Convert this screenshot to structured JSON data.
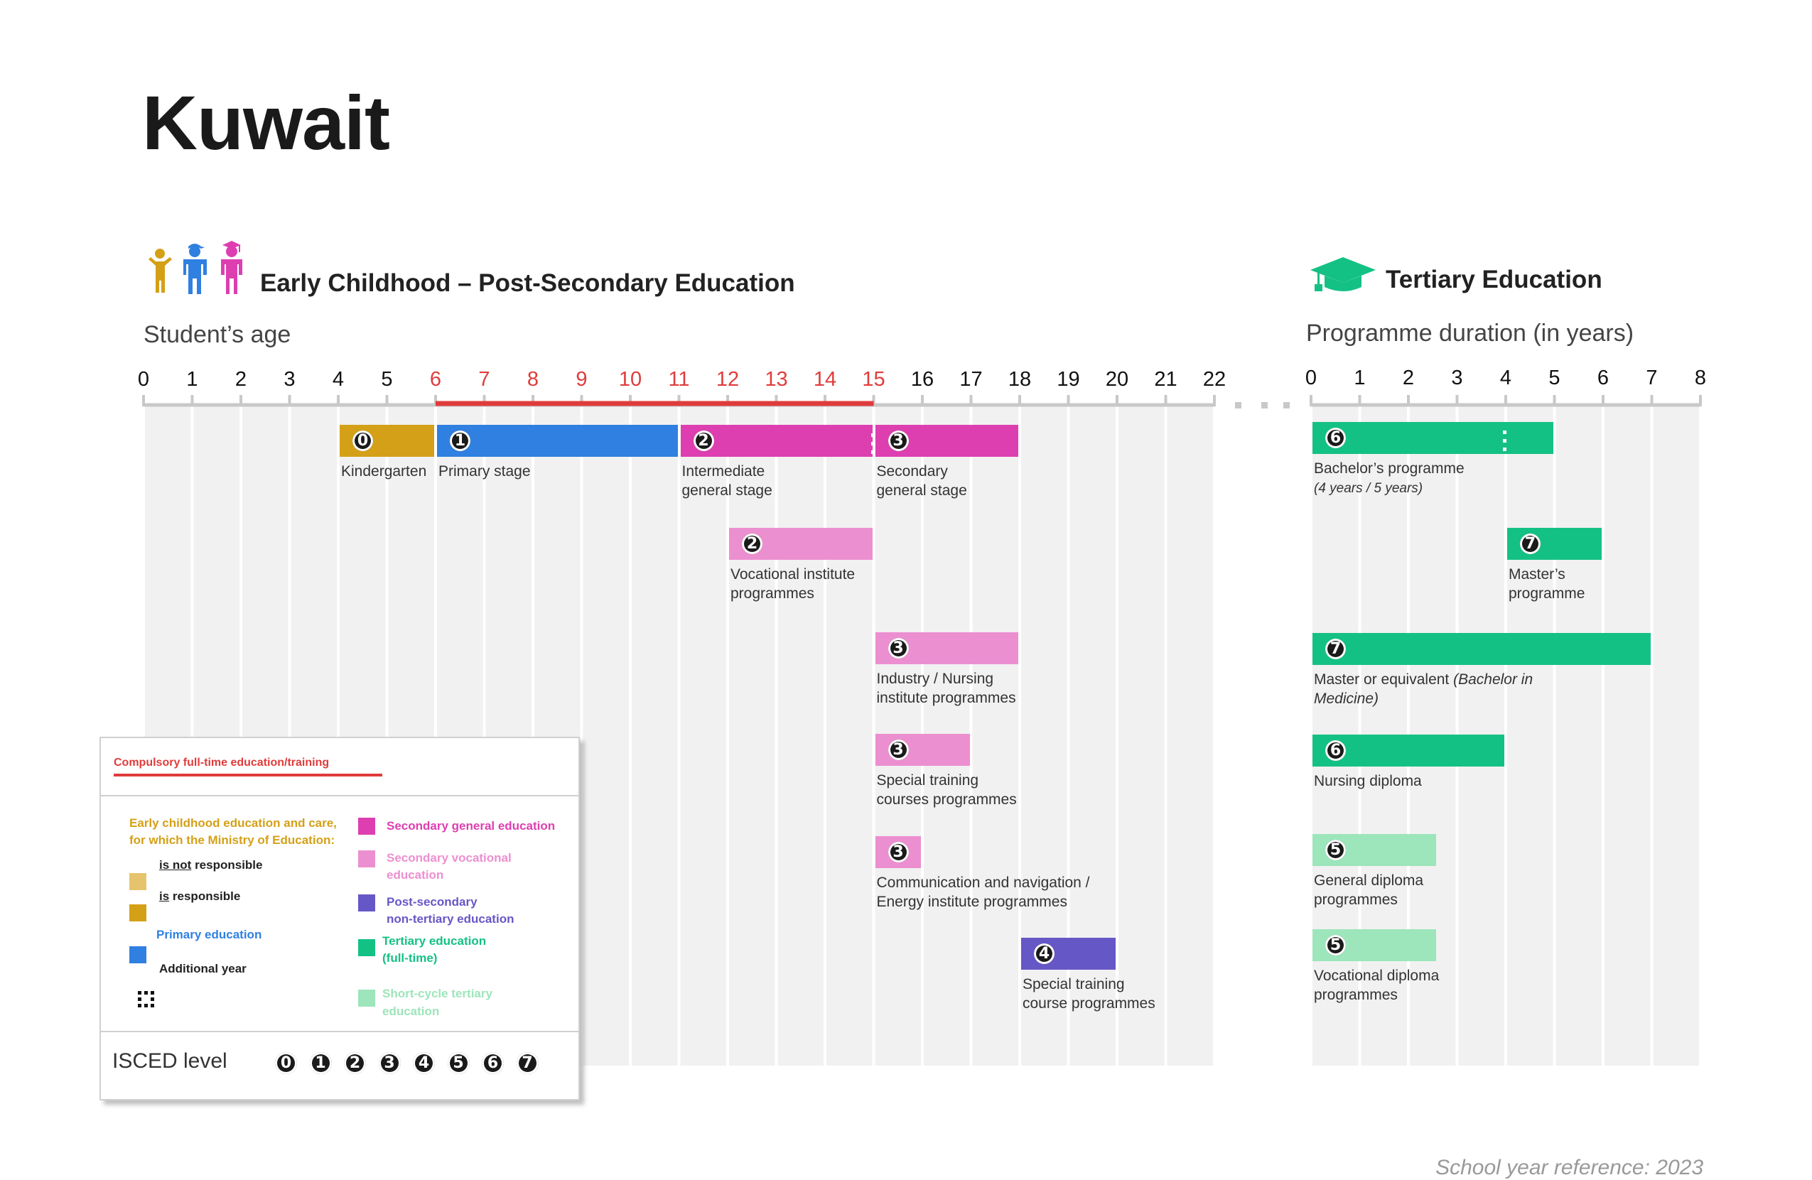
{
  "title": "Kuwait",
  "left_section": {
    "title": "Early Childhood – Post-Secondary Education",
    "axis_title": "Student’s age",
    "ticks": [
      "0",
      "1",
      "2",
      "3",
      "4",
      "5",
      "6",
      "7",
      "8",
      "9",
      "10",
      "11",
      "12",
      "13",
      "14",
      "15",
      "16",
      "17",
      "18",
      "19",
      "20",
      "21",
      "22"
    ],
    "compulsory_range": [
      "6",
      "15"
    ]
  },
  "right_section": {
    "title": "Tertiary Education",
    "axis_title": "Programme duration (in years)",
    "ticks": [
      "0",
      "1",
      "2",
      "3",
      "4",
      "5",
      "6",
      "7",
      "8"
    ]
  },
  "programmes": [
    {
      "label": "Kindergarten",
      "level": "0",
      "category": "early-childhood-responsible",
      "start": 4,
      "end": 6,
      "axis": "age"
    },
    {
      "label": "Primary stage",
      "level": "1",
      "category": "primary",
      "start": 6,
      "end": 11,
      "axis": "age"
    },
    {
      "label": "Intermediate\ngeneral stage",
      "level": "2",
      "category": "secondary-general",
      "start": 11,
      "end": 15,
      "axis": "age"
    },
    {
      "label": "Secondary\ngeneral stage",
      "level": "3",
      "category": "secondary-general",
      "start": 15,
      "end": 18,
      "axis": "age"
    },
    {
      "label": "Vocational institute\nprogrammes",
      "level": "2",
      "category": "secondary-vocational",
      "start": 12,
      "end": 15,
      "axis": "age"
    },
    {
      "label": "Industry / Nursing\ninstitute programmes",
      "level": "3",
      "category": "secondary-vocational",
      "start": 15,
      "end": 18,
      "axis": "age"
    },
    {
      "label": "Special training\ncourses programmes",
      "level": "3",
      "category": "secondary-vocational",
      "start": 15,
      "end": 17,
      "axis": "age"
    },
    {
      "label": "Communication and navigation /\nEnergy institute programmes",
      "level": "3",
      "category": "secondary-vocational",
      "start": 15,
      "end": 16,
      "axis": "age"
    },
    {
      "label": "Special training\ncourse programmes",
      "level": "4",
      "category": "post-secondary-non-tertiary",
      "start": 18,
      "end": 20,
      "axis": "age"
    },
    {
      "label": "Bachelor’s programme",
      "sublabel": "(4 years / 5 years)",
      "level": "6",
      "category": "tertiary",
      "start": 0,
      "end": 5,
      "axis": "duration"
    },
    {
      "label": "Master’s\nprogramme",
      "level": "7",
      "category": "tertiary",
      "start": 4,
      "end": 6,
      "axis": "duration"
    },
    {
      "label": "Master or equivalent",
      "label_italic": "(Bachelor in\nMedicine)",
      "level": "7",
      "category": "tertiary",
      "start": 0,
      "end": 7,
      "axis": "duration"
    },
    {
      "label": "Nursing diploma",
      "level": "6",
      "category": "tertiary",
      "start": 0,
      "end": 4,
      "axis": "duration"
    },
    {
      "label": "General diploma\nprogrammes",
      "level": "5",
      "category": "short-cycle-tertiary",
      "start": 0,
      "end": 2.6,
      "axis": "duration"
    },
    {
      "label": "Vocational diploma\nprogrammes",
      "level": "5",
      "category": "short-cycle-tertiary",
      "start": 0,
      "end": 2.6,
      "axis": "duration"
    }
  ],
  "colors": {
    "early-childhood-not-responsible": "#e6c46d",
    "early-childhood-responsible": "#d4a017",
    "primary": "#2f80e0",
    "secondary-general": "#dd3fb0",
    "secondary-vocational": "#ec8fd0",
    "post-secondary-non-tertiary": "#6657c6",
    "tertiary": "#14c184",
    "short-cycle-tertiary": "#9de5bb",
    "compulsory": "#e03c3c"
  },
  "legend": {
    "compulsory": "Compulsory full-time education/training",
    "ec_line1": "Early childhood education and care,",
    "ec_line2": "for which the  Ministry of Education:",
    "not_responsible_u": "is not",
    "not_responsible_rest": " responsible",
    "responsible_u": "is",
    "responsible_rest": " responsible",
    "primary": "Primary  education",
    "additional_year": "Additional year",
    "secondary_general": "Secondary general education",
    "secondary_vocational_1": "Secondary vocational",
    "secondary_vocational_2": "education",
    "post_secondary_1": "Post-secondary",
    "post_secondary_2": "non-tertiary education",
    "tertiary_1": "Tertiary education",
    "tertiary_2": "(full-time)",
    "short_cycle_1": "Short-cycle tertiary",
    "short_cycle_2": "education",
    "isced_title": "ISCED level",
    "isced_levels": [
      "0",
      "1",
      "2",
      "3",
      "4",
      "5",
      "6",
      "7"
    ]
  },
  "footer": "School year reference: 2023"
}
